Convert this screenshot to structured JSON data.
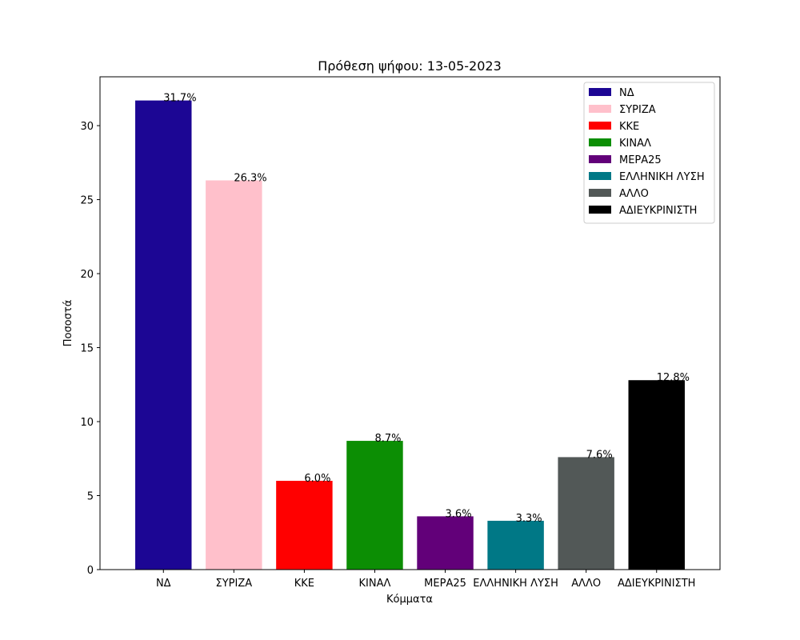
{
  "chart_data": {
    "type": "bar",
    "title": "Πρόθεση ψήφου: 13-05-2023",
    "xlabel": "Κόμματα",
    "ylabel": "Ποσοστά",
    "categories": [
      "ΝΔ",
      "ΣΥΡΙΖΑ",
      "ΚΚΕ",
      "ΚΙΝΑΛ",
      "ΜΕΡΑ25",
      "ΕΛΛΗΝΙΚΗ ΛΥΣΗ",
      "ΑΛΛΟ",
      "ΑΔΙΕΥΚΡΙΝΙΣΤΗ"
    ],
    "values": [
      31.7,
      26.3,
      6.0,
      8.7,
      3.6,
      3.3,
      7.6,
      12.8
    ],
    "value_labels": [
      "31.7%",
      "26.3%",
      "6.0%",
      "8.7%",
      "3.6%",
      "3.3%",
      "7.6%",
      "12.8%"
    ],
    "colors": [
      "#1c0694",
      "#ffc0cb",
      "#ff0000",
      "#0c8e04",
      "#620079",
      "#007886",
      "#525857",
      "#000000"
    ],
    "ylim": [
      0,
      33.3
    ],
    "yticks": [
      0,
      5,
      10,
      15,
      20,
      25,
      30
    ],
    "ytick_labels": [
      "0",
      "5",
      "10",
      "15",
      "20",
      "25",
      "30"
    ],
    "legend": {
      "placement": "top-right",
      "entries": [
        "ΝΔ",
        "ΣΥΡΙΖΑ",
        "ΚΚΕ",
        "ΚΙΝΑΛ",
        "ΜΕΡΑ25",
        "ΕΛΛΗΝΙΚΗ ΛΥΣΗ",
        "ΑΛΛΟ",
        "ΑΔΙΕΥΚΡΙΝΙΣΤΗ"
      ]
    },
    "grid": false
  }
}
